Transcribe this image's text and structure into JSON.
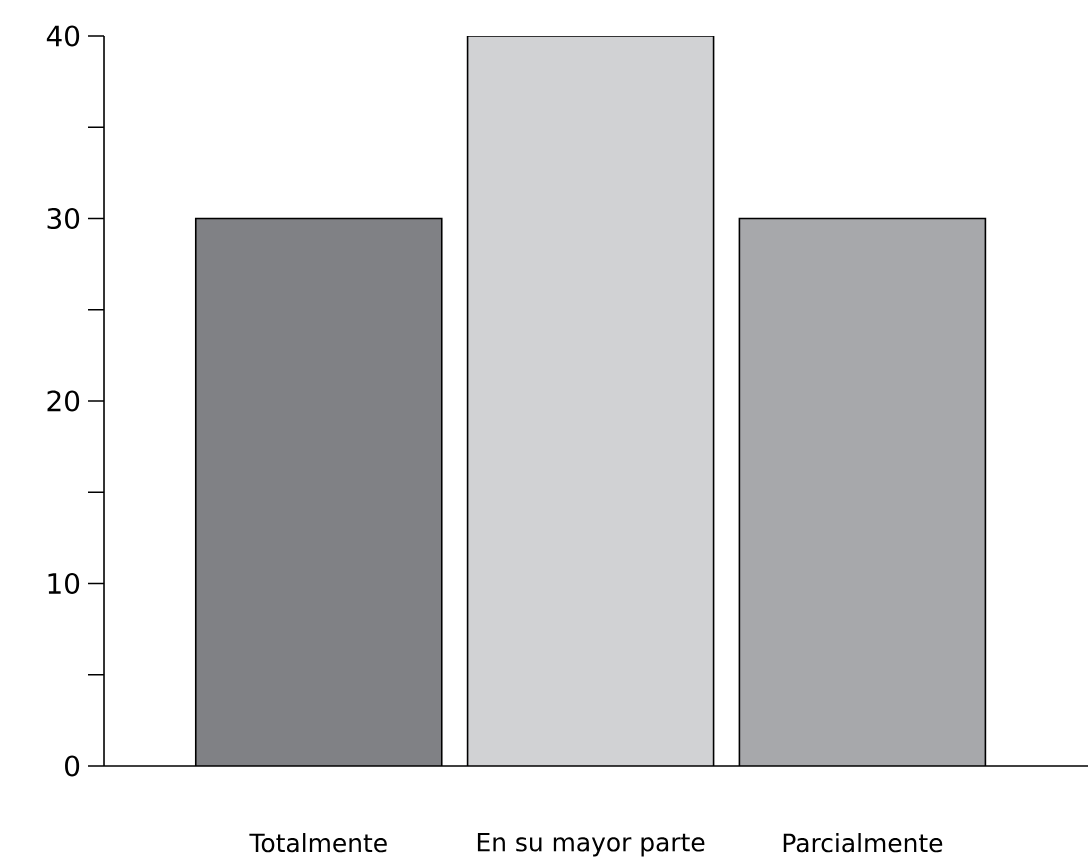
{
  "chart_data": {
    "type": "bar",
    "categories": [
      "Totalmente",
      "En su mayor parte",
      "Parcialmente"
    ],
    "values": [
      30,
      40,
      30
    ],
    "colors": [
      "#808185",
      "#d1d2d4",
      "#a7a8ab"
    ],
    "ylim": [
      0,
      40
    ],
    "yticks": [
      0,
      {
        "value": 5,
        "label": null
      },
      10,
      {
        "value": 15,
        "label": null
      },
      20,
      {
        "value": 25,
        "label": null
      },
      30,
      {
        "value": 35,
        "label": null
      },
      40
    ]
  }
}
